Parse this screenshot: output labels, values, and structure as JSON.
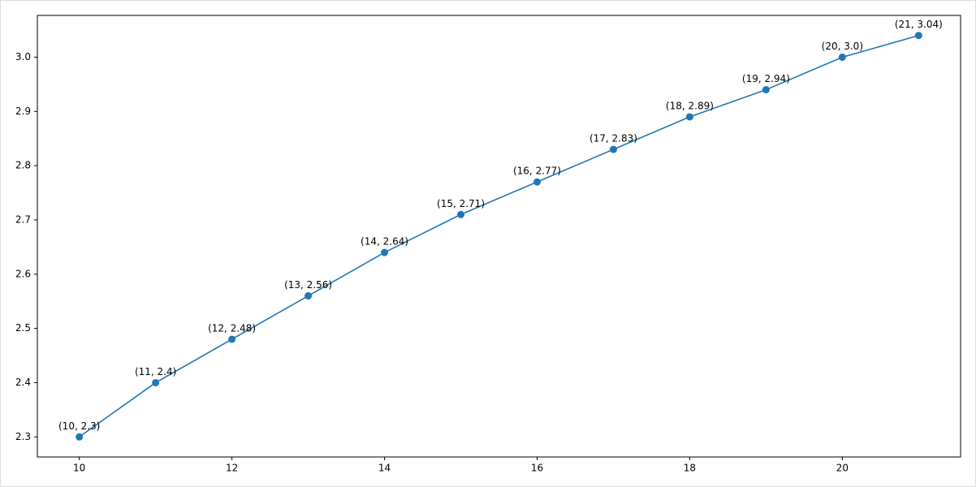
{
  "chart_data": {
    "type": "line",
    "x": [
      10,
      11,
      12,
      13,
      14,
      15,
      16,
      17,
      18,
      19,
      20,
      21
    ],
    "values": [
      2.3,
      2.4,
      2.48,
      2.56,
      2.64,
      2.71,
      2.77,
      2.83,
      2.89,
      2.94,
      3.0,
      3.04
    ],
    "value_labels": [
      "(10, 2.3)",
      "(11, 2.4)",
      "(12, 2.48)",
      "(13, 2.56)",
      "(14, 2.64)",
      "(15, 2.71)",
      "(16, 2.77)",
      "(17, 2.83)",
      "(18, 2.89)",
      "(19, 2.94)",
      "(20, 3.0)",
      "(21, 3.04)"
    ],
    "color": "#1f77b4",
    "xlim": [
      9.45,
      21.55
    ],
    "xticks": [
      10,
      12,
      14,
      16,
      18,
      20
    ],
    "ylim": [
      2.263,
      3.077
    ],
    "yticks": [
      2.3,
      2.4,
      2.5,
      2.6,
      2.7,
      2.8,
      2.9,
      {
        "value": 3,
        "label": "3.0"
      }
    ],
    "grid": false
  }
}
